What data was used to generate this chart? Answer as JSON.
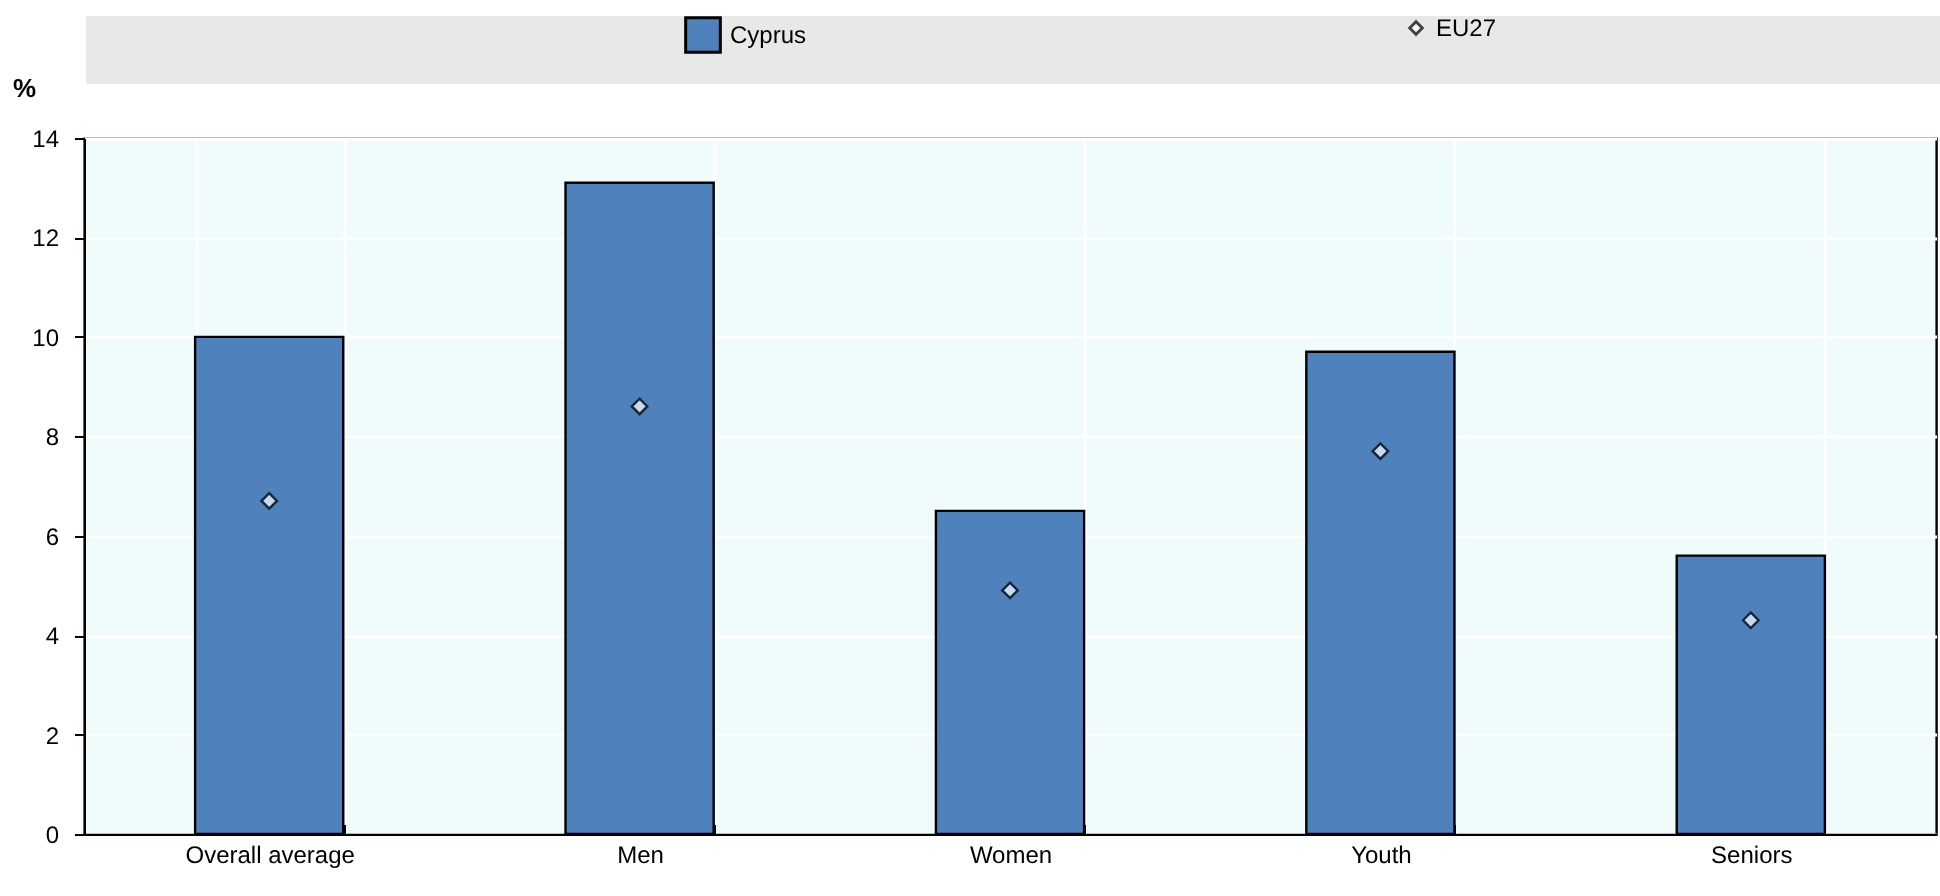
{
  "chart_data": {
    "type": "bar",
    "ylabel": "%",
    "categories": [
      "Overall average",
      "Men",
      "Women",
      "Youth",
      "Seniors"
    ],
    "series": [
      {
        "name": "Cyprus",
        "color": "#4f81bd",
        "values": [
          10.0,
          13.1,
          6.5,
          9.7,
          5.6
        ]
      },
      {
        "name": "EU27",
        "type": "scatter",
        "color": "#ffffff",
        "values": [
          6.7,
          8.6,
          4.9,
          7.7,
          4.3
        ]
      }
    ],
    "ylim": [
      0,
      14
    ],
    "yticks": [
      0,
      2,
      4,
      6,
      8,
      10,
      12,
      14
    ],
    "grid": true,
    "legend": "top",
    "marker": "diamond"
  }
}
